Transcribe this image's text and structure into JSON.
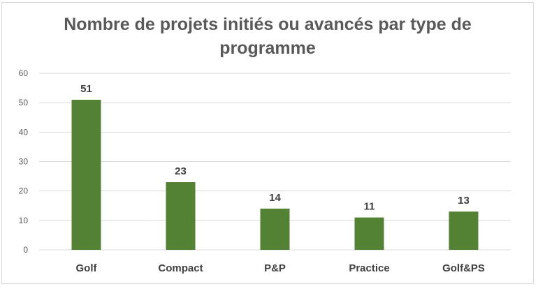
{
  "chart_data": {
    "type": "bar",
    "title": "Nombre de projets initiés ou avancés par type de programme",
    "xlabel": "",
    "ylabel": "",
    "categories": [
      "Golf",
      "Compact",
      "P&P",
      "Practice",
      "Golf&PS"
    ],
    "values": [
      51,
      23,
      14,
      11,
      13
    ],
    "ylim": [
      0,
      60
    ],
    "yticks": [
      0,
      10,
      20,
      30,
      40,
      50,
      60
    ],
    "grid": true,
    "data_labels": true,
    "legend": "none",
    "colors": {
      "bar": "#548235",
      "gridline": "#d9d9d9",
      "title": "#595959"
    }
  }
}
